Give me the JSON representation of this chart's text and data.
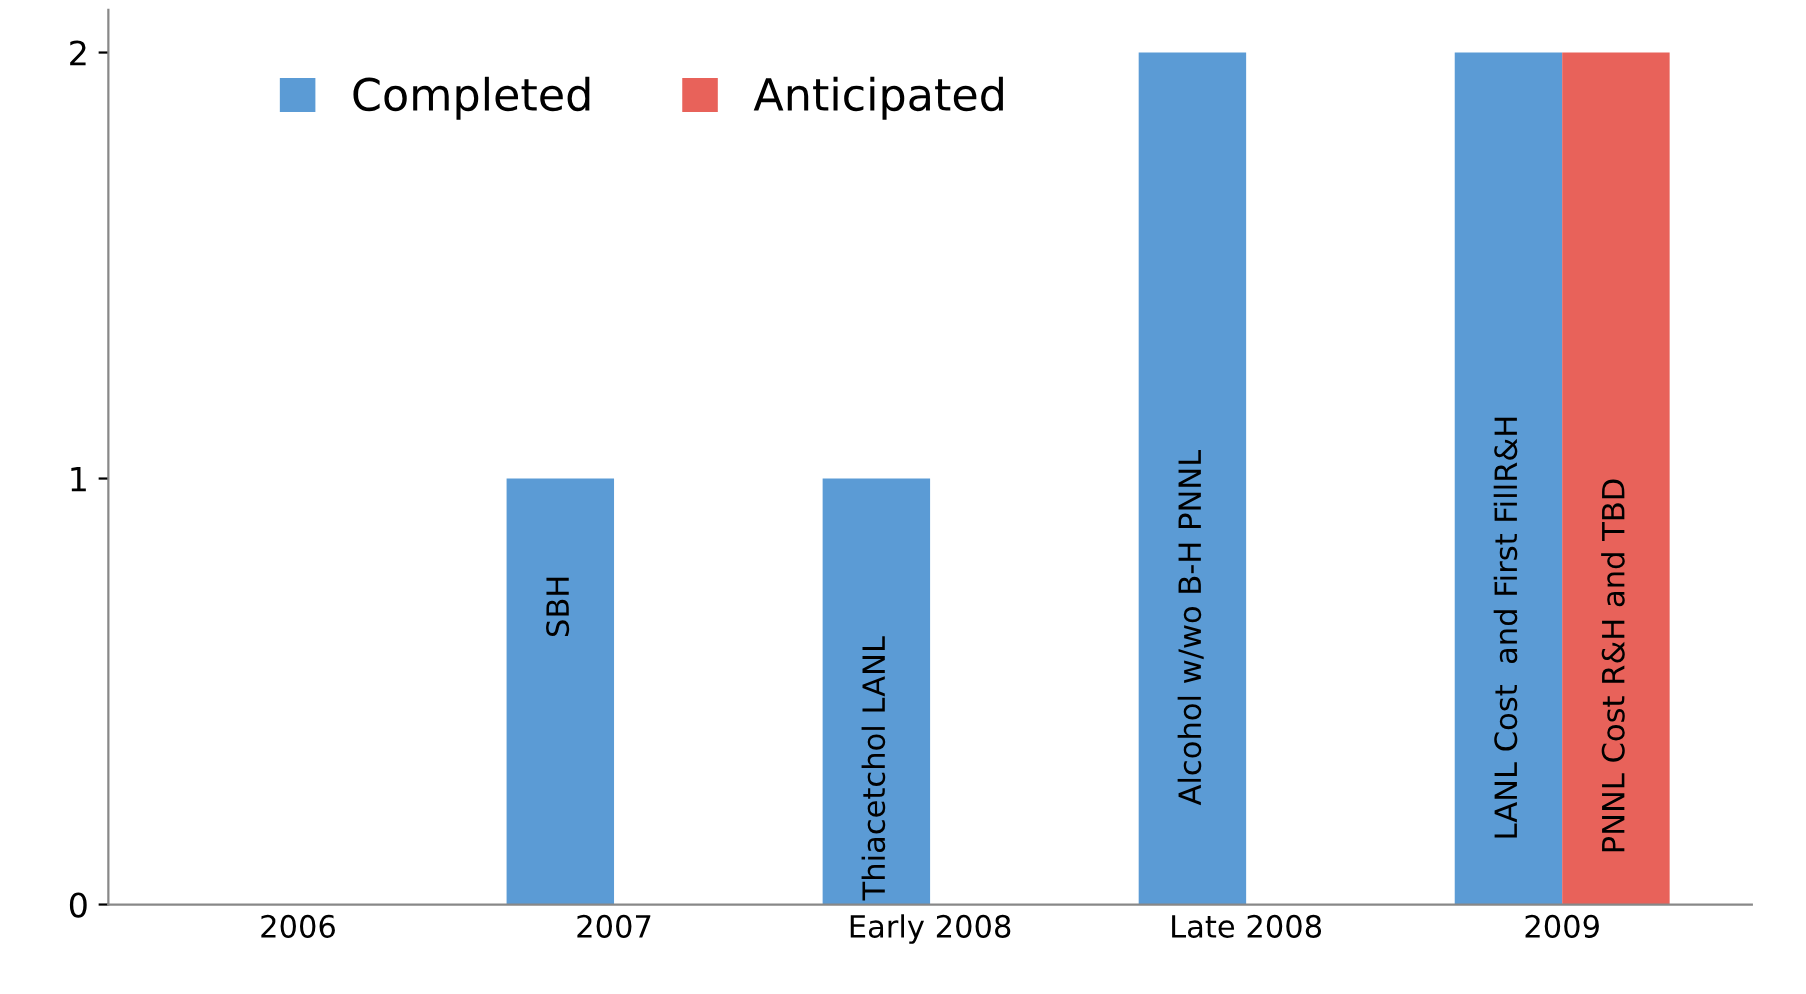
{
  "chart_data": {
    "type": "bar",
    "categories": [
      "2006",
      "2007",
      "Early 2008",
      "Late 2008",
      "2009"
    ],
    "series": [
      {
        "name": "Completed",
        "color": "#5b9bd5",
        "values": [
          0,
          1,
          1,
          2,
          2
        ]
      },
      {
        "name": "Anticipated",
        "color": "#e8625a",
        "values": [
          0,
          0,
          0,
          0,
          2
        ]
      }
    ],
    "annotations": [
      {
        "text": "SBH",
        "x": "2007",
        "y": 0.7
      },
      {
        "text": "Thiacetchol LANL",
        "x": "Early 2008",
        "y": 0.32
      },
      {
        "text": "Alcohol w/wo B-H PNNL",
        "x": "Late 2008",
        "y": 0.65
      },
      {
        "text": "LANL Cost  and First FillR&H",
        "x": "2009",
        "y": 0.65
      },
      {
        "text": "PNNL Cost R&H and TBD",
        "x": "2009",
        "y": 0.56
      }
    ],
    "ylim": [
      0,
      2.1
    ],
    "yticks": [
      0,
      1,
      2
    ],
    "grid": false,
    "legend": "top left"
  }
}
